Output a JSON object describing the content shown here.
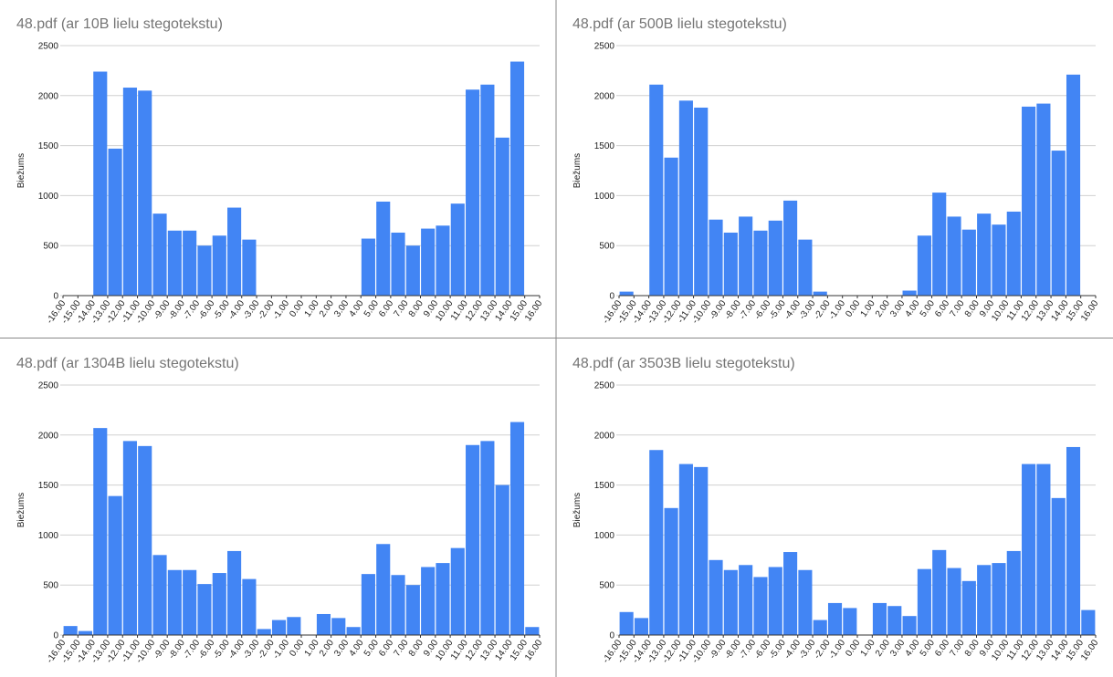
{
  "chart_data": [
    {
      "type": "histogram",
      "title": "48.pdf (ar 10B lielu stegotekstu)",
      "y_label": "Biežums",
      "color": "#4285f4",
      "grid": true,
      "bins": [
        -16,
        -15,
        -14,
        -13,
        -12,
        -11,
        -10,
        -9,
        -8,
        -7,
        -6,
        -5,
        -4,
        -3,
        -2,
        -1,
        0,
        1,
        2,
        3,
        4,
        5,
        6,
        7,
        8,
        9,
        10,
        11,
        12,
        13,
        14,
        15,
        16
      ],
      "values": [
        0,
        0,
        2240,
        1470,
        2080,
        2050,
        820,
        650,
        650,
        500,
        600,
        880,
        560,
        0,
        0,
        0,
        0,
        0,
        0,
        0,
        570,
        940,
        630,
        500,
        670,
        700,
        920,
        2060,
        2110,
        1580,
        2340,
        0
      ],
      "xlim": [
        -16,
        16
      ],
      "ylim": [
        0,
        2500
      ],
      "yticks": [
        0,
        500,
        1000,
        1500,
        2000,
        2500
      ],
      "xticks": [
        {
          "value": -16,
          "label": "-16.00"
        },
        {
          "value": -15,
          "label": "-15.00"
        },
        {
          "value": -14,
          "label": "-14.00"
        },
        {
          "value": -13,
          "label": "-13.00"
        },
        {
          "value": -12,
          "label": "-12.00"
        },
        {
          "value": -11,
          "label": "-11.00"
        },
        {
          "value": -10,
          "label": "-10.00"
        },
        {
          "value": -9,
          "label": "-9.00"
        },
        {
          "value": -8,
          "label": "-8.00"
        },
        {
          "value": -7,
          "label": "-7.00"
        },
        {
          "value": -6,
          "label": "-6.00"
        },
        {
          "value": -5,
          "label": "-5.00"
        },
        {
          "value": -4,
          "label": "-4.00"
        },
        {
          "value": -3,
          "label": "-3.00"
        },
        {
          "value": -2,
          "label": "-2.00"
        },
        {
          "value": -1,
          "label": "-1.00"
        },
        {
          "value": 0,
          "label": "0.00"
        },
        {
          "value": 1,
          "label": "1.00"
        },
        {
          "value": 2,
          "label": "2.00"
        },
        {
          "value": 3,
          "label": "3.00"
        },
        {
          "value": 4,
          "label": "4.00"
        },
        {
          "value": 5,
          "label": "5.00"
        },
        {
          "value": 6,
          "label": "6.00"
        },
        {
          "value": 7,
          "label": "7.00"
        },
        {
          "value": 8,
          "label": "8.00"
        },
        {
          "value": 9,
          "label": "9.00"
        },
        {
          "value": 10,
          "label": "10.00"
        },
        {
          "value": 11,
          "label": "11.00"
        },
        {
          "value": 12,
          "label": "12.00"
        },
        {
          "value": 13,
          "label": "13.00"
        },
        {
          "value": 14,
          "label": "14.00"
        },
        {
          "value": 15,
          "label": "15.00"
        },
        {
          "value": 16,
          "label": "16.00"
        }
      ]
    },
    {
      "type": "histogram",
      "title": "48.pdf (ar 500B lielu stegotekstu)",
      "y_label": "Biežums",
      "color": "#4285f4",
      "grid": true,
      "bins": [
        -16,
        -15,
        -14,
        -13,
        -12,
        -11,
        -10,
        -9,
        -8,
        -7,
        -6,
        -5,
        -4,
        -3,
        -2,
        -1,
        0,
        1,
        2,
        3,
        4,
        5,
        6,
        7,
        8,
        9,
        10,
        11,
        12,
        13,
        14,
        15,
        16
      ],
      "values": [
        40,
        0,
        2110,
        1380,
        1950,
        1880,
        760,
        630,
        790,
        650,
        750,
        950,
        560,
        40,
        0,
        0,
        0,
        0,
        0,
        50,
        600,
        1030,
        790,
        660,
        820,
        710,
        840,
        1890,
        1920,
        1450,
        2210,
        0
      ],
      "xlim": [
        -16,
        16
      ],
      "ylim": [
        0,
        2500
      ],
      "yticks": [
        0,
        500,
        1000,
        1500,
        2000,
        2500
      ],
      "xticks": [
        {
          "value": -16,
          "label": "-16.00"
        },
        {
          "value": -15,
          "label": "-15.00"
        },
        {
          "value": -14,
          "label": "-14.00"
        },
        {
          "value": -13,
          "label": "-13.00"
        },
        {
          "value": -12,
          "label": "-12.00"
        },
        {
          "value": -11,
          "label": "-11.00"
        },
        {
          "value": -10,
          "label": "-10.00"
        },
        {
          "value": -9,
          "label": "-9.00"
        },
        {
          "value": -8,
          "label": "-8.00"
        },
        {
          "value": -7,
          "label": "-7.00"
        },
        {
          "value": -6,
          "label": "-6.00"
        },
        {
          "value": -5,
          "label": "-5.00"
        },
        {
          "value": -4,
          "label": "-4.00"
        },
        {
          "value": -3,
          "label": "-3.00"
        },
        {
          "value": -2,
          "label": "-2.00"
        },
        {
          "value": -1,
          "label": "-1.00"
        },
        {
          "value": 0,
          "label": "0.00"
        },
        {
          "value": 1,
          "label": "1.00"
        },
        {
          "value": 2,
          "label": "2.00"
        },
        {
          "value": 3,
          "label": "3.00"
        },
        {
          "value": 4,
          "label": "4.00"
        },
        {
          "value": 5,
          "label": "5.00"
        },
        {
          "value": 6,
          "label": "6.00"
        },
        {
          "value": 7,
          "label": "7.00"
        },
        {
          "value": 8,
          "label": "8.00"
        },
        {
          "value": 9,
          "label": "9.00"
        },
        {
          "value": 10,
          "label": "10.00"
        },
        {
          "value": 11,
          "label": "11.00"
        },
        {
          "value": 12,
          "label": "12.00"
        },
        {
          "value": 13,
          "label": "13.00"
        },
        {
          "value": 14,
          "label": "14.00"
        },
        {
          "value": 15,
          "label": "15.00"
        },
        {
          "value": 16,
          "label": "16.00"
        }
      ]
    },
    {
      "type": "histogram",
      "title": "48.pdf (ar 1304B lielu stegotekstu)",
      "y_label": "Biežums",
      "color": "#4285f4",
      "grid": true,
      "bins": [
        -16,
        -15,
        -14,
        -13,
        -12,
        -11,
        -10,
        -9,
        -8,
        -7,
        -6,
        -5,
        -4,
        -3,
        -2,
        -1,
        0,
        1,
        2,
        3,
        4,
        5,
        6,
        7,
        8,
        9,
        10,
        11,
        12,
        13,
        14,
        15,
        16
      ],
      "values": [
        90,
        40,
        2070,
        1390,
        1940,
        1890,
        800,
        650,
        650,
        510,
        620,
        840,
        560,
        60,
        150,
        180,
        0,
        210,
        170,
        80,
        610,
        910,
        600,
        500,
        680,
        720,
        870,
        1900,
        1940,
        1500,
        2130,
        80
      ],
      "xlim": [
        -16,
        16
      ],
      "ylim": [
        0,
        2500
      ],
      "yticks": [
        0,
        500,
        1000,
        1500,
        2000,
        2500
      ],
      "xticks": [
        {
          "value": -16,
          "label": "-16.00"
        },
        {
          "value": -15,
          "label": "-15.00"
        },
        {
          "value": -14,
          "label": "-14.00"
        },
        {
          "value": -13,
          "label": "-13.00"
        },
        {
          "value": -12,
          "label": "-12.00"
        },
        {
          "value": -11,
          "label": "-11.00"
        },
        {
          "value": -10,
          "label": "-10.00"
        },
        {
          "value": -9,
          "label": "-9.00"
        },
        {
          "value": -8,
          "label": "-8.00"
        },
        {
          "value": -7,
          "label": "-7.00"
        },
        {
          "value": -6,
          "label": "-6.00"
        },
        {
          "value": -5,
          "label": "-5.00"
        },
        {
          "value": -4,
          "label": "-4.00"
        },
        {
          "value": -3,
          "label": "-3.00"
        },
        {
          "value": -2,
          "label": "-2.00"
        },
        {
          "value": -1,
          "label": "-1.00"
        },
        {
          "value": 0,
          "label": "0.00"
        },
        {
          "value": 1,
          "label": "1.00"
        },
        {
          "value": 2,
          "label": "2.00"
        },
        {
          "value": 3,
          "label": "3.00"
        },
        {
          "value": 4,
          "label": "4.00"
        },
        {
          "value": 5,
          "label": "5.00"
        },
        {
          "value": 6,
          "label": "6.00"
        },
        {
          "value": 7,
          "label": "7.00"
        },
        {
          "value": 8,
          "label": "8.00"
        },
        {
          "value": 9,
          "label": "9.00"
        },
        {
          "value": 10,
          "label": "10.00"
        },
        {
          "value": 11,
          "label": "11.00"
        },
        {
          "value": 12,
          "label": "12.00"
        },
        {
          "value": 13,
          "label": "13.00"
        },
        {
          "value": 14,
          "label": "14.00"
        },
        {
          "value": 15,
          "label": "15.00"
        },
        {
          "value": 16,
          "label": "16.00"
        }
      ]
    },
    {
      "type": "histogram",
      "title": "48.pdf (ar 3503B lielu stegotekstu)",
      "y_label": "Biežums",
      "color": "#4285f4",
      "grid": true,
      "bins": [
        -16,
        -15,
        -14,
        -13,
        -12,
        -11,
        -10,
        -9,
        -8,
        -7,
        -6,
        -5,
        -4,
        -3,
        -2,
        -1,
        0,
        1,
        2,
        3,
        4,
        5,
        6,
        7,
        8,
        9,
        10,
        11,
        12,
        13,
        14,
        15,
        16
      ],
      "values": [
        230,
        170,
        1850,
        1270,
        1710,
        1680,
        750,
        650,
        700,
        580,
        680,
        830,
        650,
        150,
        320,
        270,
        0,
        320,
        290,
        190,
        660,
        850,
        670,
        540,
        700,
        720,
        840,
        1710,
        1710,
        1370,
        1880,
        250
      ],
      "xlim": [
        -16,
        16
      ],
      "ylim": [
        0,
        2500
      ],
      "yticks": [
        0,
        500,
        1000,
        1500,
        2000,
        2500
      ],
      "xticks": [
        {
          "value": -16,
          "label": "-16.00"
        },
        {
          "value": -15,
          "label": "-15.00"
        },
        {
          "value": -14,
          "label": "-14.00"
        },
        {
          "value": -13,
          "label": "-13.00"
        },
        {
          "value": -12,
          "label": "-12.00"
        },
        {
          "value": -11,
          "label": "-11.00"
        },
        {
          "value": -10,
          "label": "-10.00"
        },
        {
          "value": -9,
          "label": "-9.00"
        },
        {
          "value": -8,
          "label": "-8.00"
        },
        {
          "value": -7,
          "label": "-7.00"
        },
        {
          "value": -6,
          "label": "-6.00"
        },
        {
          "value": -5,
          "label": "-5.00"
        },
        {
          "value": -4,
          "label": "-4.00"
        },
        {
          "value": -3,
          "label": "-3.00"
        },
        {
          "value": -2,
          "label": "-2.00"
        },
        {
          "value": -1,
          "label": "-1.00"
        },
        {
          "value": 0,
          "label": "0.00"
        },
        {
          "value": 1,
          "label": "1.00"
        },
        {
          "value": 2,
          "label": "2.00"
        },
        {
          "value": 3,
          "label": "3.00"
        },
        {
          "value": 4,
          "label": "4.00"
        },
        {
          "value": 5,
          "label": "5.00"
        },
        {
          "value": 6,
          "label": "6.00"
        },
        {
          "value": 7,
          "label": "7.00"
        },
        {
          "value": 8,
          "label": "8.00"
        },
        {
          "value": 9,
          "label": "9.00"
        },
        {
          "value": 10,
          "label": "10.00"
        },
        {
          "value": 11,
          "label": "11.00"
        },
        {
          "value": 12,
          "label": "12.00"
        },
        {
          "value": 13,
          "label": "13.00"
        },
        {
          "value": 14,
          "label": "14.00"
        },
        {
          "value": 15,
          "label": "15.00"
        },
        {
          "value": 16,
          "label": "16.00"
        }
      ]
    }
  ]
}
